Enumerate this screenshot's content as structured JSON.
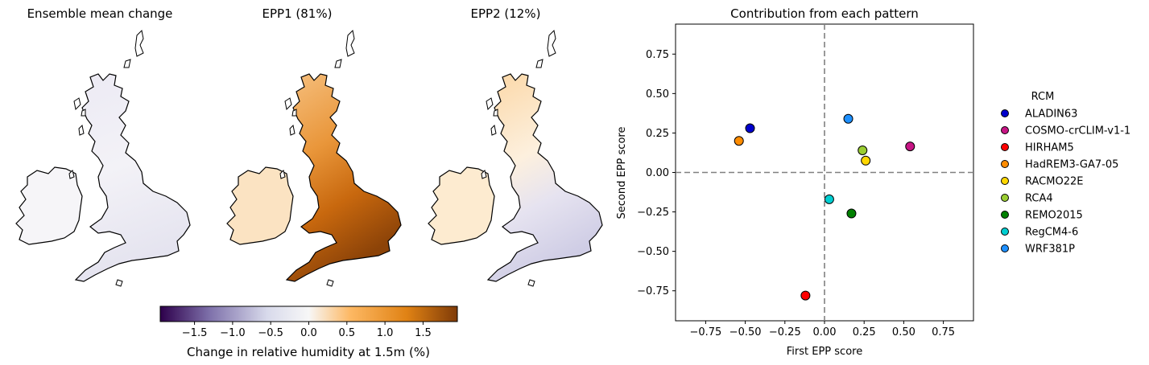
{
  "maps": {
    "titles": [
      "Ensemble mean change",
      "EPP1 (81%)",
      "EPP2 (12%)"
    ]
  },
  "colorbar": {
    "label": "Change in relative humidity at 1.5m (%)",
    "ticks": [
      -1.5,
      -1.0,
      -0.5,
      0.0,
      0.5,
      1.0,
      1.5
    ],
    "tick_labels": [
      "−1.5",
      "−1.0",
      "−0.5",
      "0.0",
      "0.5",
      "1.0",
      "1.5"
    ],
    "range": [
      -1.95,
      1.95
    ],
    "colormap": [
      "#2d004b",
      "#8073ac",
      "#d8daeb",
      "#f7f7f7",
      "#fdb863",
      "#e08214",
      "#7f3b08"
    ]
  },
  "chart_data": {
    "type": "scatter",
    "title": "Contribution from each pattern",
    "xlabel": "First EPP score",
    "ylabel": "Second EPP score",
    "xlim": [
      -0.94,
      0.94
    ],
    "ylim": [
      -0.94,
      0.94
    ],
    "xticks": [
      -0.75,
      -0.5,
      -0.25,
      0.0,
      0.25,
      0.5,
      0.75
    ],
    "yticks": [
      -0.75,
      -0.5,
      -0.25,
      0.0,
      0.25,
      0.5,
      0.75
    ],
    "xtick_labels": [
      "−0.75",
      "−0.50",
      "−0.25",
      "0.00",
      "0.25",
      "0.50",
      "0.75"
    ],
    "ytick_labels": [
      "−0.75",
      "−0.50",
      "−0.25",
      "0.00",
      "0.25",
      "0.50",
      "0.75"
    ],
    "reference_lines": {
      "x": 0,
      "y": 0,
      "style": "dashed"
    },
    "legend": {
      "title": "RCM",
      "placement": "right"
    },
    "series": [
      {
        "name": "ALADIN63",
        "color": "#0000cd",
        "x": -0.47,
        "y": 0.28
      },
      {
        "name": "COSMO-crCLIM-v1-1",
        "color": "#c71585",
        "x": 0.54,
        "y": 0.165
      },
      {
        "name": "HIRHAM5",
        "color": "#ff0000",
        "x": -0.12,
        "y": -0.78
      },
      {
        "name": "HadREM3-GA7-05",
        "color": "#ff8c00",
        "x": -0.54,
        "y": 0.2
      },
      {
        "name": "RACMO22E",
        "color": "#ffd700",
        "x": 0.26,
        "y": 0.075
      },
      {
        "name": "RCA4",
        "color": "#9acd32",
        "x": 0.24,
        "y": 0.14
      },
      {
        "name": "REMO2015",
        "color": "#008000",
        "x": 0.17,
        "y": -0.26
      },
      {
        "name": "RegCM4-6",
        "color": "#00ced1",
        "x": 0.03,
        "y": -0.17
      },
      {
        "name": "WRF381P",
        "color": "#1e90ff",
        "x": 0.15,
        "y": 0.34
      }
    ]
  }
}
